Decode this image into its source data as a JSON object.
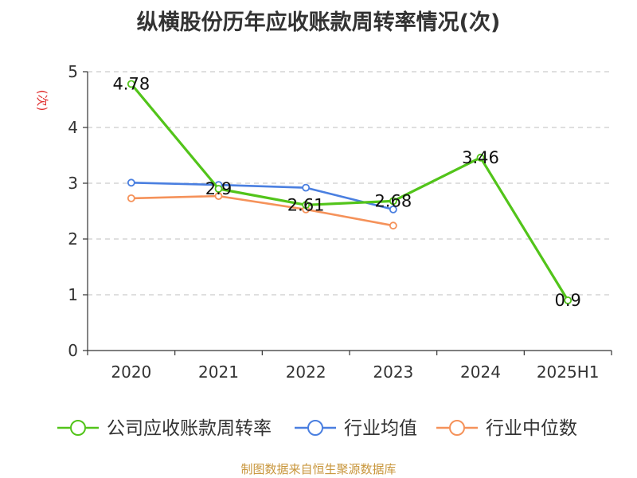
{
  "title": "纵横股份历年应收账款周转率情况(次)",
  "source": "制图数据来自恒生聚源数据库",
  "chart_data": {
    "type": "line",
    "title": "纵横股份历年应收账款周转率情况(次)",
    "ylabel": "(次)",
    "xlabel": "",
    "categories": [
      "2020",
      "2021",
      "2022",
      "2023",
      "2024",
      "2025H1"
    ],
    "ylim": [
      0,
      5
    ],
    "yticks": [
      0,
      1,
      2,
      3,
      4,
      5
    ],
    "grid": true,
    "legend_position": "bottom",
    "series": [
      {
        "name": "公司应收账款周转率",
        "color": "#52c41a",
        "values": [
          4.78,
          2.9,
          2.61,
          2.68,
          3.46,
          0.9
        ],
        "labels": [
          "4.78",
          "2.9",
          "2.61",
          "2.68",
          "3.46",
          "0.9"
        ]
      },
      {
        "name": "行业均值",
        "color": "#4a7fe0",
        "values": [
          3.01,
          2.97,
          2.92,
          2.53,
          null,
          null
        ]
      },
      {
        "name": "行业中位数",
        "color": "#f5925a",
        "values": [
          2.73,
          2.77,
          2.53,
          2.24,
          null,
          null
        ]
      }
    ]
  }
}
